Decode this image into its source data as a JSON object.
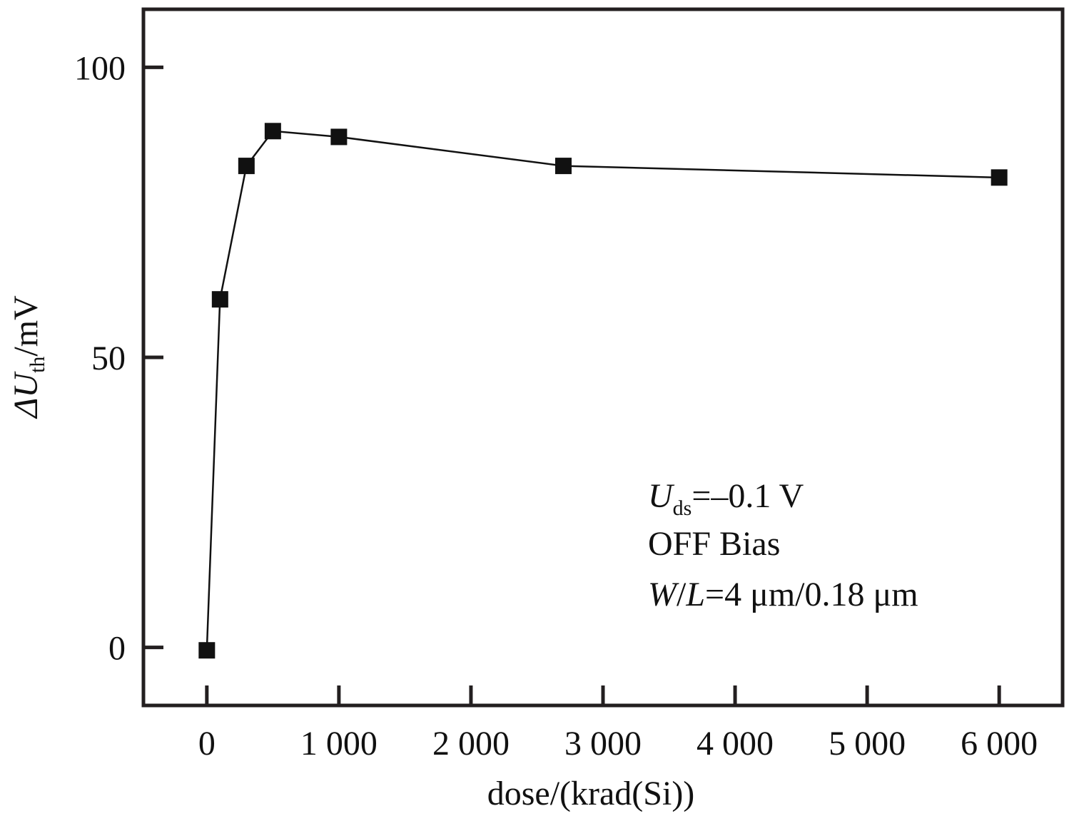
{
  "chart_data": {
    "type": "line",
    "x": [
      0,
      100,
      300,
      500,
      1000,
      2700,
      6000
    ],
    "series": [
      {
        "values": [
          -0.5,
          60,
          83,
          89,
          88,
          83,
          81
        ]
      }
    ],
    "xlim": [
      -480,
      6480
    ],
    "ylim": [
      -10,
      110
    ],
    "x_ticks": [
      0,
      1000,
      2000,
      3000,
      4000,
      5000,
      6000
    ],
    "x_tick_labels": [
      "0",
      "1 000",
      "2 000",
      "3 000",
      "4 000",
      "5 000",
      "6 000"
    ],
    "y_ticks": [
      0,
      50,
      100
    ],
    "y_tick_labels": [
      "0",
      "50",
      "100"
    ],
    "xlabel": "dose/(krad(Si))",
    "ylabel": {
      "prefix": "ΔU",
      "subscript": "th",
      "suffix": "/mV"
    },
    "annotations": {
      "line1": {
        "symbol": "U",
        "subscript": "ds",
        "rest": "=–0.1 V"
      },
      "line2": "OFF Bias",
      "line3": {
        "w": "W",
        "slash": "/",
        "l": "L",
        "rest": "=4 μm/0.18 μm"
      }
    },
    "grid": false,
    "legend": "none",
    "marker": "square",
    "colors": {
      "line": "#111111",
      "marker": "#111111",
      "frame": "#231f20"
    }
  }
}
